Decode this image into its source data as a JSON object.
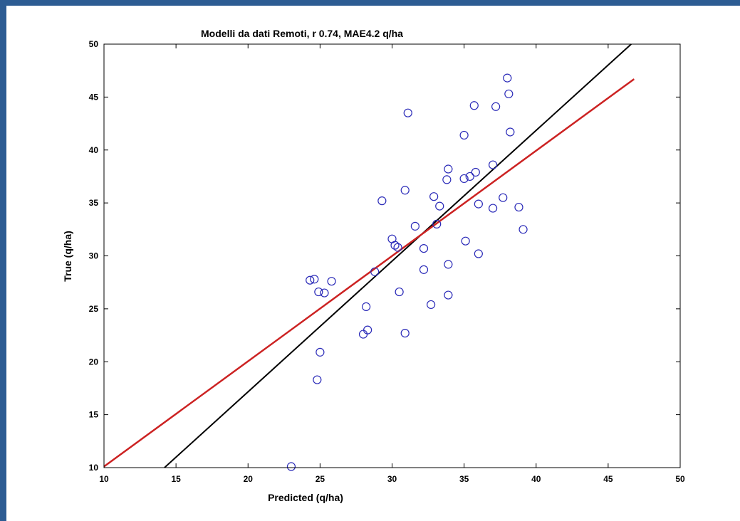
{
  "frame_color": "#2d5c93",
  "chart_data": {
    "type": "scatter",
    "title": "Modelli da dati Remoti, r 0.74, MAE4.2 q/ha",
    "xlabel": "Predicted (q/ha)",
    "ylabel": "True (q/ha)",
    "xlim": [
      10,
      50
    ],
    "ylim": [
      10,
      50
    ],
    "x_ticks": [
      10,
      15,
      20,
      25,
      30,
      35,
      40,
      45,
      50
    ],
    "y_ticks": [
      10,
      15,
      20,
      25,
      30,
      35,
      40,
      45,
      50
    ],
    "x_tick_labels": [
      "10",
      "15",
      "20",
      "25",
      "30",
      "35",
      "40",
      "45",
      "50"
    ],
    "y_tick_labels": [
      "10",
      "15",
      "20",
      "25",
      "30",
      "35",
      "40",
      "45",
      "50"
    ],
    "grid": false,
    "marker_color": "#2a2ab8",
    "series": [
      {
        "marker": "circle",
        "points": [
          [
            23.0,
            10.1
          ],
          [
            24.3,
            27.7
          ],
          [
            24.6,
            27.8
          ],
          [
            24.9,
            26.6
          ],
          [
            25.3,
            26.5
          ],
          [
            25.8,
            27.6
          ],
          [
            25.0,
            20.9
          ],
          [
            24.8,
            18.3
          ],
          [
            28.0,
            22.6
          ],
          [
            28.3,
            23.0
          ],
          [
            28.2,
            25.2
          ],
          [
            28.8,
            28.5
          ],
          [
            29.3,
            35.2
          ],
          [
            30.0,
            31.6
          ],
          [
            30.2,
            31.0
          ],
          [
            30.5,
            26.6
          ],
          [
            30.4,
            30.8
          ],
          [
            30.9,
            36.2
          ],
          [
            30.9,
            22.7
          ],
          [
            31.1,
            43.5
          ],
          [
            31.6,
            32.8
          ],
          [
            32.2,
            30.7
          ],
          [
            32.2,
            28.7
          ],
          [
            32.7,
            25.4
          ],
          [
            32.9,
            35.6
          ],
          [
            33.1,
            33.0
          ],
          [
            33.3,
            34.7
          ],
          [
            33.8,
            37.2
          ],
          [
            33.9,
            38.2
          ],
          [
            33.9,
            29.2
          ],
          [
            33.9,
            26.3
          ],
          [
            35.0,
            41.4
          ],
          [
            35.0,
            37.3
          ],
          [
            35.1,
            31.4
          ],
          [
            35.4,
            37.5
          ],
          [
            35.7,
            44.2
          ],
          [
            35.8,
            37.9
          ],
          [
            36.0,
            34.9
          ],
          [
            36.0,
            30.2
          ],
          [
            37.0,
            34.5
          ],
          [
            37.0,
            38.6
          ],
          [
            37.2,
            44.1
          ],
          [
            37.7,
            35.5
          ],
          [
            38.0,
            46.8
          ],
          [
            38.1,
            45.3
          ],
          [
            38.2,
            41.7
          ],
          [
            38.8,
            34.6
          ],
          [
            39.1,
            32.5
          ]
        ]
      }
    ],
    "lines": [
      {
        "color": "#000000",
        "from": [
          14.2,
          10
        ],
        "to": [
          46.6,
          50
        ]
      },
      {
        "color": "#cc2222",
        "from": [
          10,
          10.1
        ],
        "to": [
          46.8,
          46.7
        ]
      }
    ]
  }
}
